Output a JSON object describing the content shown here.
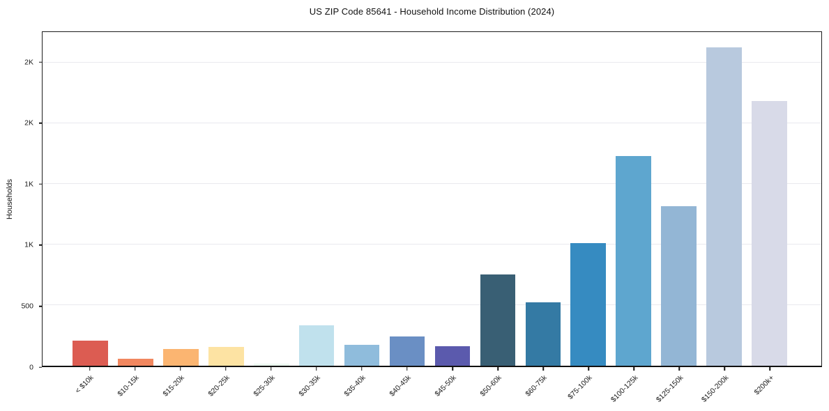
{
  "chart_data": {
    "type": "bar",
    "title": "US ZIP Code 85641 - Household Income Distribution (2024)",
    "xlabel": "",
    "ylabel": "Households",
    "categories": [
      "< $10k",
      "$10-15k",
      "$15-20k",
      "$20-25k",
      "$25-30k",
      "$30-35k",
      "$35-40k",
      "$40-45k",
      "$45-50k",
      "$50-60k",
      "$60-75k",
      "$75-100k",
      "$100-125k",
      "$125-150k",
      "$150-200k",
      "$200k+"
    ],
    "values": [
      206,
      58,
      137,
      154,
      19,
      332,
      172,
      241,
      161,
      755,
      521,
      1014,
      1731,
      1317,
      2626,
      2184
    ],
    "bar_colors": [
      "#dc5c52",
      "#f1875f",
      "#fbb571",
      "#fde3a3",
      "#ecf7f0",
      "#c0e1ed",
      "#8fbcdc",
      "#6a8fc4",
      "#5b5aad",
      "#395f74",
      "#347aa4",
      "#368bc1",
      "#5ea6cf",
      "#93b6d5",
      "#b8c9de",
      "#d8dae8"
    ],
    "ylim": [
      0,
      2754
    ],
    "y_ticks": {
      "values": [
        0,
        500,
        1000,
        1500,
        2000,
        2500
      ],
      "labels": [
        "0",
        "500",
        "1K",
        "1K",
        "2K",
        "2K"
      ]
    },
    "x_tick_rotation": 45,
    "grid": "horizontal",
    "grid_color": "#e9e9ee",
    "legend": "none",
    "background_color": "#ffffff",
    "frame_color": "#1c1c1c"
  }
}
